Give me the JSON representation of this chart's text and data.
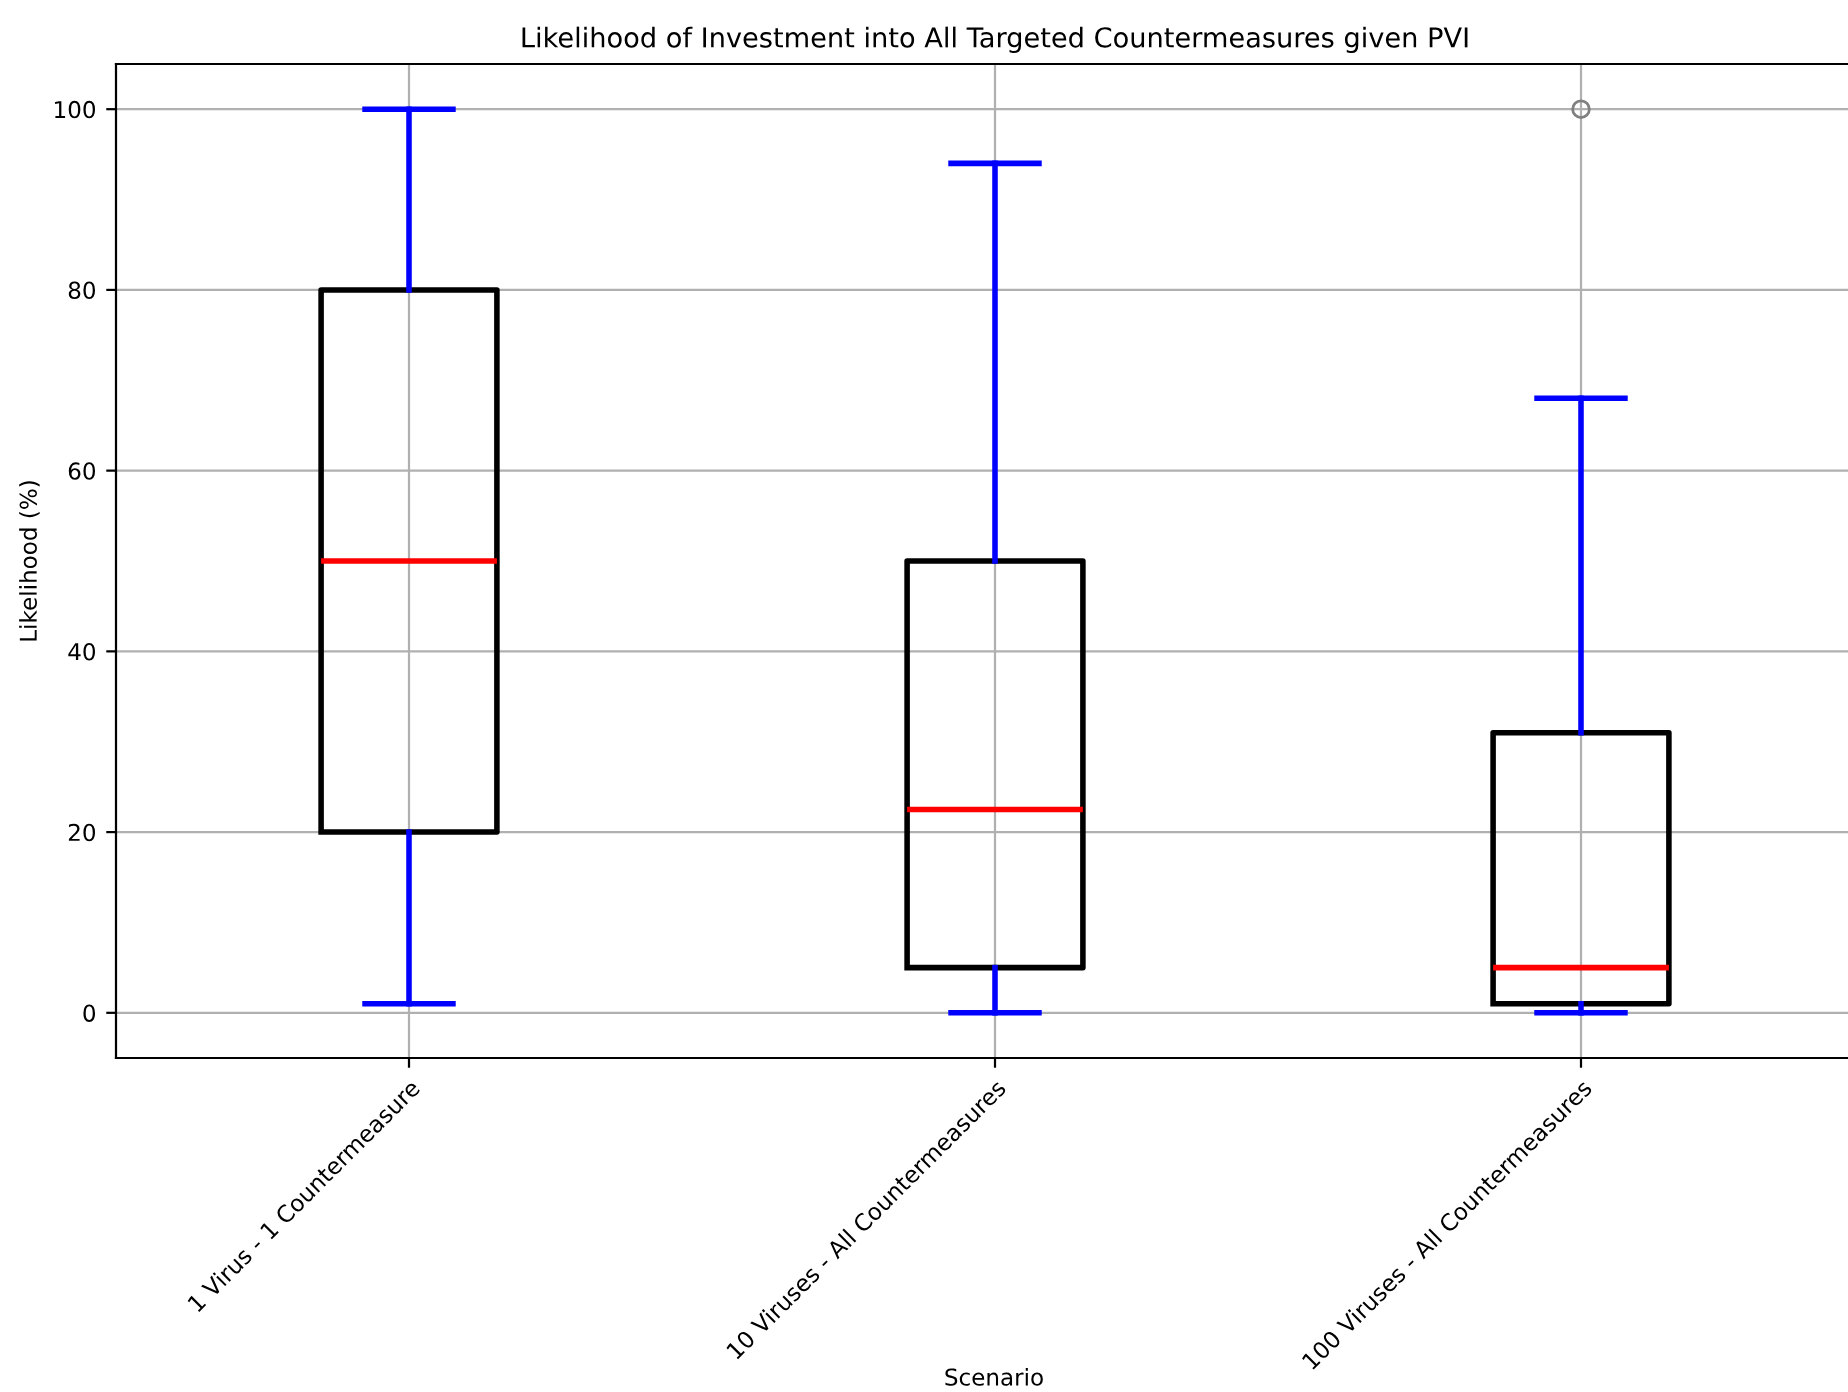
{
  "chart_data": {
    "type": "box",
    "title": "Likelihood of Investment into All Targeted Countermeasures given PVI",
    "xlabel": "Scenario",
    "ylabel": "Likelihood (%)",
    "categories": [
      "1 Virus - 1 Countermeasure",
      "10 Viruses - All Countermeasures",
      "100 Viruses - All Countermeasures"
    ],
    "boxes": [
      {
        "low": 1,
        "q1": 20,
        "median": 50,
        "q3": 80,
        "high": 100
      },
      {
        "low": 0,
        "q1": 5,
        "median": 22.5,
        "q3": 50,
        "high": 94
      },
      {
        "low": 0,
        "q1": 1,
        "median": 5,
        "q3": 31,
        "high": 68,
        "outliers": [
          100
        ]
      }
    ],
    "ylim": [
      -5,
      105
    ],
    "yticks": [
      0,
      20,
      40,
      60,
      80,
      100
    ],
    "grid": true,
    "legend": false,
    "marker": "circle"
  }
}
